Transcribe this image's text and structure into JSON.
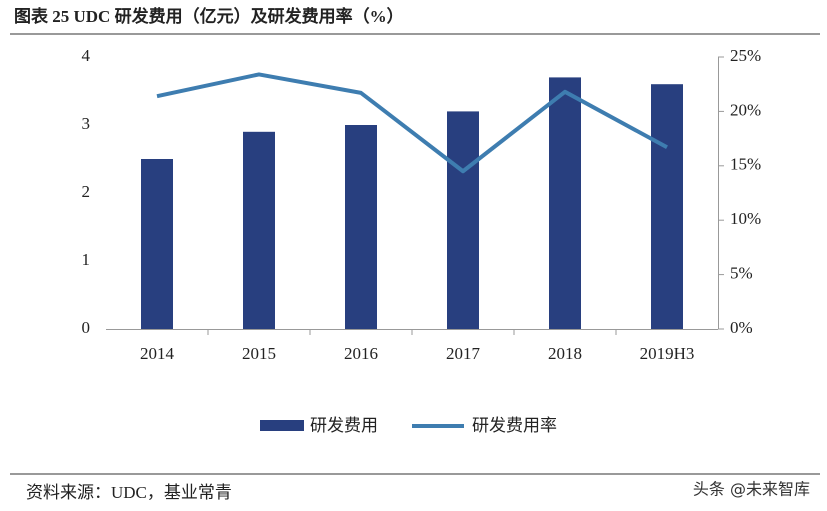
{
  "chart_data": {
    "type": "combo",
    "title": "图表 25 UDC 研发费用（亿元）及研发费用率（%）",
    "categories": [
      "2014",
      "2015",
      "2016",
      "2017",
      "2018",
      "2019H3"
    ],
    "series": [
      {
        "name": "研发费用",
        "type": "bar",
        "color": "#283f7f",
        "values": [
          2.5,
          2.9,
          3.0,
          3.2,
          3.7,
          3.6
        ]
      },
      {
        "name": "研发费用率",
        "type": "line",
        "axis": "y2",
        "color": "#3e7db0",
        "values": [
          21.4,
          23.4,
          21.7,
          14.5,
          21.8,
          16.7
        ]
      }
    ],
    "ylim": [
      0,
      4
    ],
    "yticks": [
      0,
      1,
      2,
      3,
      4
    ],
    "y2lim": [
      0,
      25
    ],
    "y2ticks": [
      {
        "value": 0,
        "label": "0%"
      },
      {
        "value": 5,
        "label": "5%"
      },
      {
        "value": 10,
        "label": "10%"
      },
      {
        "value": 15,
        "label": "15%"
      },
      {
        "value": 20,
        "label": "20%"
      },
      {
        "value": 25,
        "label": "25%"
      }
    ],
    "legend": "bottom",
    "source": "资料来源：UDC，基业常青",
    "watermark": "头条 @未来智库"
  }
}
